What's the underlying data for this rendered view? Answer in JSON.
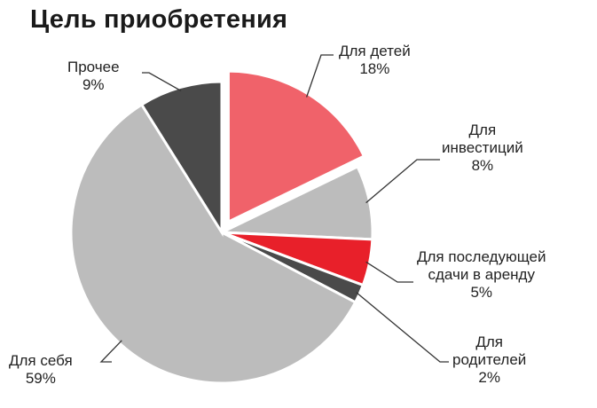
{
  "chart_data": {
    "type": "pie",
    "title": "Цель приобретения",
    "slices": [
      {
        "label": "Для детей",
        "value": 18,
        "value_text": "18%",
        "color": "#f0626a",
        "exploded": true
      },
      {
        "label": "Для инвестиций",
        "value": 8,
        "value_text": "8%",
        "color": "#bcbcbc",
        "exploded": false
      },
      {
        "label": "Для последующей сдачи в аренду",
        "value": 5,
        "value_text": "5%",
        "color": "#e8202a",
        "exploded": false
      },
      {
        "label": "Для родителей",
        "value": 2,
        "value_text": "2%",
        "color": "#4a4a4a",
        "exploded": false
      },
      {
        "label": "Для себя",
        "value": 59,
        "value_text": "59%",
        "color": "#bcbcbc",
        "exploded": false
      },
      {
        "label": "Прочее",
        "value": 9,
        "value_text": "9%",
        "color": "#4a4a4a",
        "exploded": false
      }
    ]
  }
}
